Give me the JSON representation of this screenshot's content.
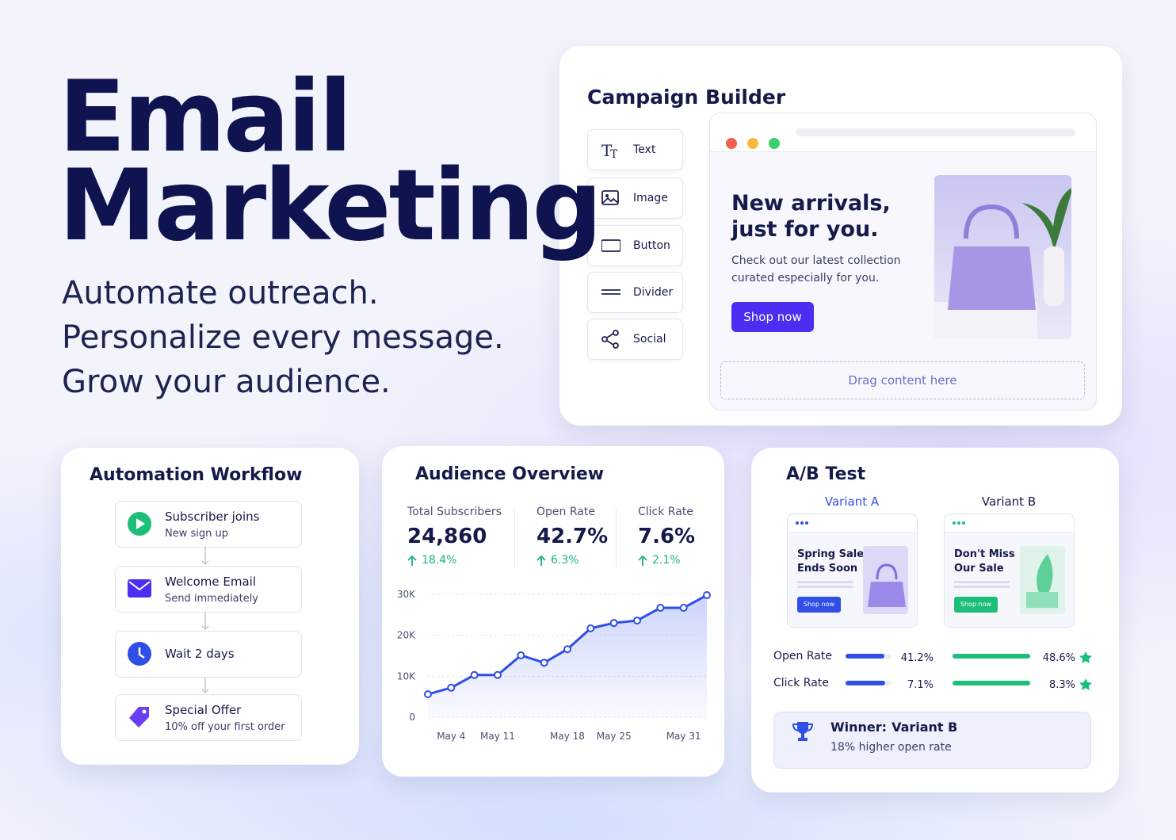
{
  "hero": {
    "title": [
      "Email",
      "Marketing"
    ],
    "taglines": [
      "Automate outreach.",
      "Personalize every message.",
      "Grow your audience."
    ]
  },
  "campaign_builder": {
    "title": "Campaign Builder",
    "tools": [
      "Text",
      "Image",
      "Button",
      "Divider",
      "Social"
    ],
    "preview": {
      "headline": [
        "New arrivals,",
        "just for you."
      ],
      "body": [
        "Check out our latest collection",
        "curated especially for you."
      ],
      "button": "Shop now",
      "dropzone": "Drag content here"
    }
  },
  "automation_workflow": {
    "title": "Automation Workflow",
    "steps": [
      {
        "title": "Subscriber joins",
        "subtitle": "New sign up"
      },
      {
        "title": "Welcome Email",
        "subtitle": "Send immediately"
      },
      {
        "title": "Wait 2 days"
      },
      {
        "title": "Special Offer",
        "subtitle": "10% off your first order"
      }
    ]
  },
  "audience_overview": {
    "title": "Audience Overview",
    "stats": [
      {
        "label": "Total Subscribers",
        "value": "24,860",
        "change": "18.4%"
      },
      {
        "label": "Open Rate",
        "value": "42.7%",
        "change": "6.3%"
      },
      {
        "label": "Click Rate",
        "value": "7.6%",
        "change": "2.1%"
      }
    ]
  },
  "chart_data": {
    "type": "line",
    "categories": [
      null,
      "May 4",
      null,
      "May 11",
      null,
      null,
      "May 18",
      null,
      "May 25",
      null,
      null,
      "May 31",
      null
    ],
    "values": [
      5600,
      7200,
      10300,
      10300,
      15100,
      13300,
      16600,
      21700,
      23000,
      23600,
      26700,
      26700,
      29800
    ],
    "color": "#2f4fe6",
    "ylim": [
      0,
      30000
    ],
    "yticks": [
      0,
      {
        "value": 10000,
        "label": "10K"
      },
      {
        "value": 20000,
        "label": "20K"
      },
      {
        "value": 30000,
        "label": "30K"
      }
    ],
    "grid": true
  },
  "ab_test": {
    "title": "A/B Test",
    "variants": [
      {
        "name": "Variant A",
        "headline": [
          "Spring Sale",
          "Ends Soon"
        ],
        "button": "Shop now"
      },
      {
        "name": "Variant B",
        "headline": [
          "Don't Miss",
          "Our Sale"
        ],
        "button": "Shop now"
      }
    ],
    "metrics": [
      {
        "label": "Open Rate",
        "values": [
          41.2,
          48.6
        ],
        "value_labels": [
          "41.2%",
          "48.6%"
        ]
      },
      {
        "label": "Click Rate",
        "values": [
          7.1,
          8.3
        ],
        "value_labels": [
          "7.1%",
          "8.3%"
        ]
      }
    ],
    "winner": {
      "label": "Winner:",
      "name": "Variant B",
      "note": "18% higher open rate"
    }
  }
}
